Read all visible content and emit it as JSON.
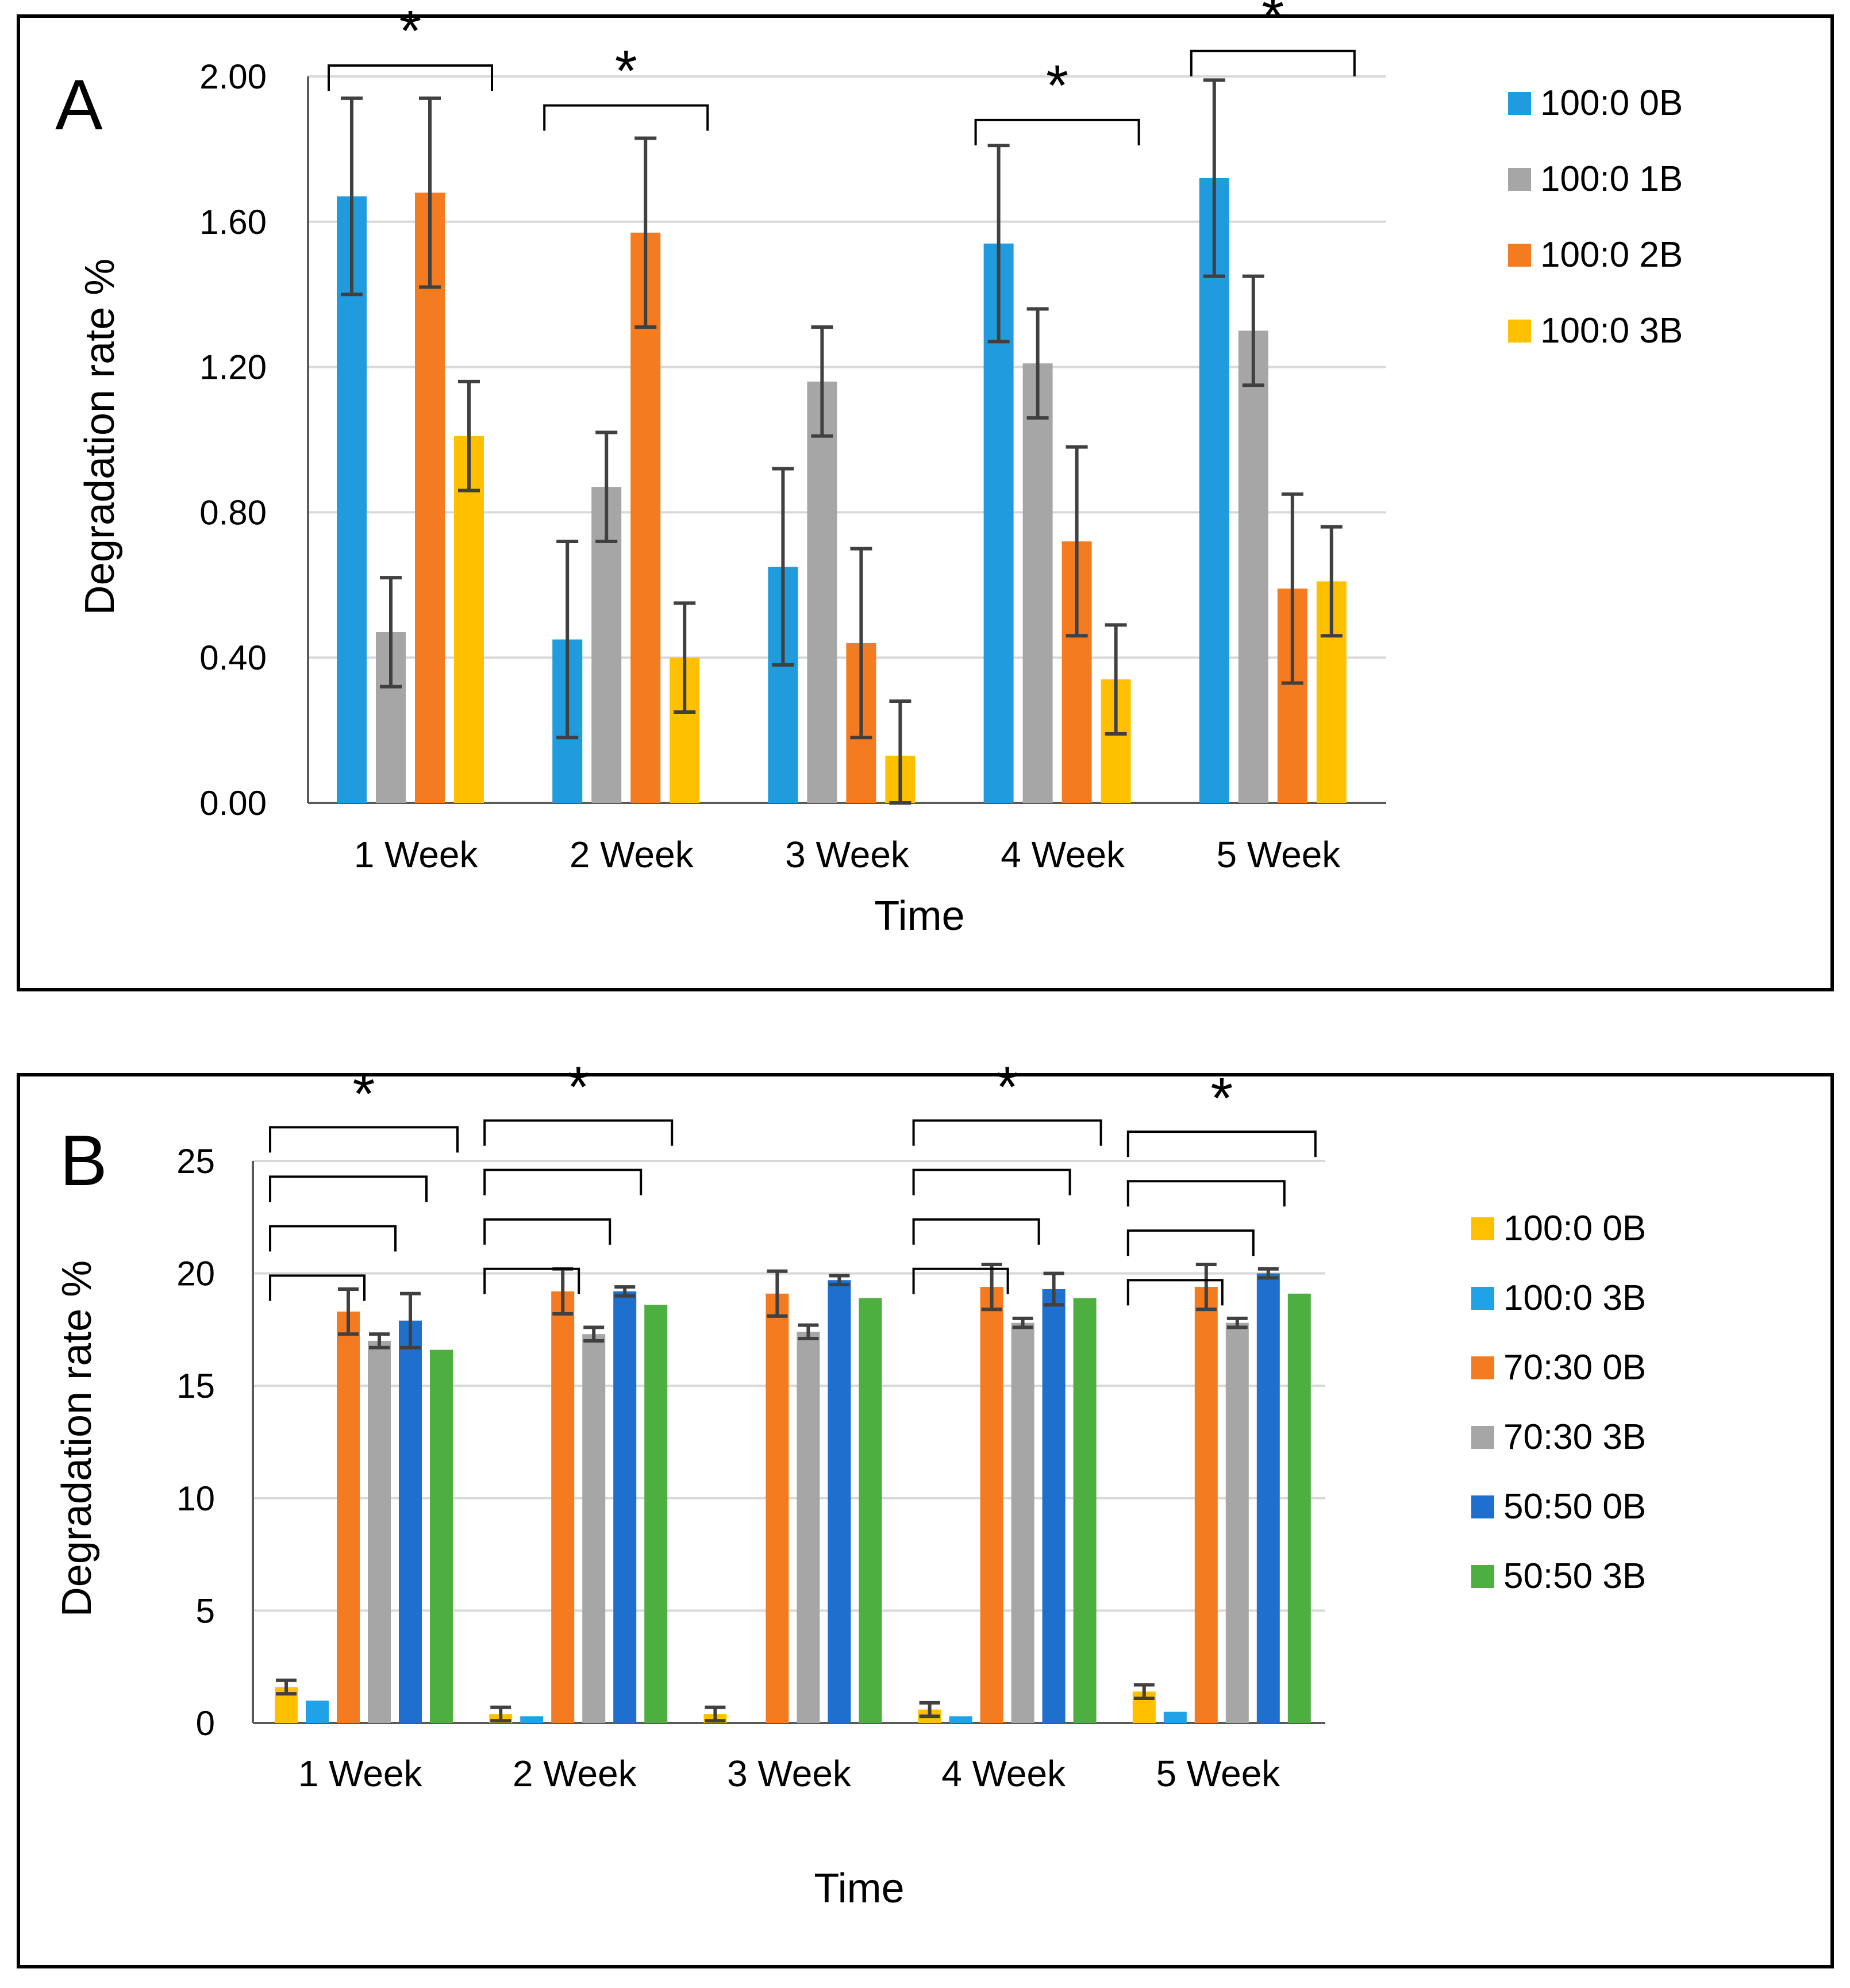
{
  "chart_data": [
    {
      "panel": "A",
      "type": "bar",
      "categories": [
        "1 Week",
        "2 Week",
        "3 Week",
        "4 Week",
        "5 Week"
      ],
      "xlabel": "Time",
      "ylabel": "Degradation rate %",
      "ylim": [
        0,
        2.0
      ],
      "yticks": [
        "0.00",
        "0.40",
        "0.80",
        "1.20",
        "1.60",
        "2.00"
      ],
      "ytick_values": [
        0,
        0.4,
        0.8,
        1.2,
        1.6,
        2.0
      ],
      "grid": true,
      "legend_position": "right",
      "series": [
        {
          "name": "100:0 0B",
          "color": "#1f9bde",
          "values": [
            1.67,
            0.45,
            0.65,
            1.54,
            1.72
          ],
          "errors": [
            0.27,
            0.27,
            0.27,
            0.27,
            0.27
          ]
        },
        {
          "name": "100:0 1B",
          "color": "#a6a6a6",
          "values": [
            0.47,
            0.87,
            1.16,
            1.21,
            1.3
          ],
          "errors": [
            0.15,
            0.15,
            0.15,
            0.15,
            0.15
          ]
        },
        {
          "name": "100:0 2B",
          "color": "#f47b20",
          "values": [
            1.68,
            1.57,
            0.44,
            0.72,
            0.59
          ],
          "errors": [
            0.26,
            0.26,
            0.26,
            0.26,
            0.26
          ]
        },
        {
          "name": "100:0 3B",
          "color": "#ffc000",
          "values": [
            1.01,
            0.4,
            0.13,
            0.34,
            0.61
          ],
          "errors": [
            0.15,
            0.15,
            0.15,
            0.15,
            0.15
          ]
        }
      ],
      "significance": [
        {
          "category": 0,
          "label": "*",
          "from_series": 0,
          "to_series": 3,
          "bracket_top": 2.03
        },
        {
          "category": 1,
          "label": "*",
          "from_series": 0,
          "to_series": 3,
          "bracket_top": 1.92
        },
        {
          "category": 3,
          "label": "*",
          "from_series": 0,
          "to_series": 3,
          "bracket_top": 1.88
        },
        {
          "category": 4,
          "label": "*",
          "from_series": 0,
          "to_series": 3,
          "bracket_top": 2.07
        }
      ]
    },
    {
      "panel": "B",
      "type": "bar",
      "categories": [
        "1 Week",
        "2 Week",
        "3 Week",
        "4 Week",
        "5 Week"
      ],
      "xlabel": "Time",
      "ylabel": "Degradation rate %",
      "ylim": [
        0,
        25
      ],
      "yticks": [
        "0",
        "5",
        "10",
        "15",
        "20",
        "25"
      ],
      "ytick_values": [
        0,
        5,
        10,
        15,
        20,
        25
      ],
      "grid": true,
      "legend_position": "right",
      "series": [
        {
          "name": "100:0 0B",
          "color": "#ffc000",
          "values": [
            1.6,
            0.4,
            0.4,
            0.6,
            1.4
          ],
          "errors": [
            0.3,
            0.3,
            0.3,
            0.3,
            0.3
          ]
        },
        {
          "name": "100:0 3B",
          "color": "#1fa2e8",
          "values": [
            1.0,
            0.3,
            0,
            0.3,
            0.5
          ],
          "errors": [
            0,
            0,
            0,
            0,
            0
          ]
        },
        {
          "name": "70:30 0B",
          "color": "#f47b20",
          "values": [
            18.3,
            19.2,
            19.1,
            19.4,
            19.4
          ],
          "errors": [
            1.0,
            1.0,
            1.0,
            1.0,
            1.0
          ]
        },
        {
          "name": "70:30 3B",
          "color": "#a6a6a6",
          "values": [
            17.0,
            17.3,
            17.4,
            17.8,
            17.8
          ],
          "errors": [
            0.3,
            0.3,
            0.3,
            0.2,
            0.2
          ]
        },
        {
          "name": "50:50 0B",
          "color": "#1f6fce",
          "values": [
            17.9,
            19.2,
            19.7,
            19.3,
            20.0
          ],
          "errors": [
            1.2,
            0.2,
            0.2,
            0.7,
            0.2
          ]
        },
        {
          "name": "50:50 3B",
          "color": "#4caf3f",
          "values": [
            16.6,
            18.6,
            18.9,
            18.9,
            19.1
          ],
          "errors": [
            0,
            0,
            0,
            0,
            0
          ]
        }
      ],
      "significance": [
        {
          "category": 0,
          "label": "*",
          "brackets": [
            [
              0,
              5
            ],
            [
              0,
              4
            ],
            [
              0,
              3
            ],
            [
              0,
              2
            ]
          ],
          "top": 26.5
        },
        {
          "category": 1,
          "label": "*",
          "brackets": [
            [
              0,
              5
            ],
            [
              0,
              4
            ],
            [
              0,
              3
            ],
            [
              0,
              2
            ]
          ],
          "top": 26.8
        },
        {
          "category": 3,
          "label": "*",
          "brackets": [
            [
              0,
              5
            ],
            [
              0,
              4
            ],
            [
              0,
              3
            ],
            [
              0,
              2
            ]
          ],
          "top": 26.8
        },
        {
          "category": 4,
          "label": "*",
          "brackets": [
            [
              0,
              5
            ],
            [
              0,
              4
            ],
            [
              0,
              3
            ],
            [
              0,
              2
            ]
          ],
          "top": 26.3
        }
      ]
    }
  ]
}
